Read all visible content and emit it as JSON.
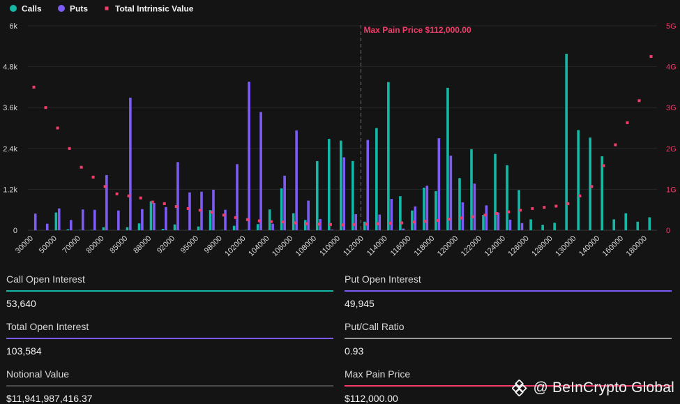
{
  "chart_data": {
    "type": "bar",
    "legend": {
      "placement": "top-left",
      "items": [
        {
          "label": "Calls",
          "color": "#14b8a6",
          "marker": "circle"
        },
        {
          "label": "Puts",
          "color": "#7c5cf5",
          "marker": "circle"
        },
        {
          "label": "Total Intrinsic Value",
          "color": "#f23c6a",
          "marker": "square"
        }
      ]
    },
    "y_left": {
      "ticks": [
        "0",
        "1.2k",
        "2.4k",
        "3.6k",
        "4.8k",
        "6k"
      ],
      "range": [
        0,
        6000
      ]
    },
    "y_right": {
      "ticks": [
        "0",
        "1G",
        "2G",
        "3G",
        "4G",
        "5G"
      ],
      "range": [
        0,
        5000000000
      ]
    },
    "x_tick_labels": [
      "30000",
      "50000",
      "70000",
      "80000",
      "85000",
      "88000",
      "92000",
      "95000",
      "98000",
      "102000",
      "104000",
      "106000",
      "108000",
      "110000",
      "112000",
      "114000",
      "116000",
      "118000",
      "120000",
      "122000",
      "124000",
      "126000",
      "128000",
      "130000",
      "140000",
      "160000",
      "180000"
    ],
    "grid": true,
    "annotation": {
      "label": "Max Pain Price $112,000.00",
      "at_index": 28
    },
    "series": [
      {
        "name": "Calls",
        "color": "#14b8a6",
        "values": [
          0,
          0,
          520,
          30,
          10,
          10,
          90,
          0,
          90,
          200,
          850,
          40,
          170,
          0,
          110,
          590,
          10,
          130,
          10,
          180,
          610,
          1230,
          500,
          300,
          2030,
          2680,
          2630,
          2030,
          250,
          3000,
          4350,
          1000,
          580,
          1250,
          1150,
          4180,
          1530,
          2380,
          450,
          2240,
          1910,
          1180,
          320,
          160,
          220,
          5180,
          2940,
          2720,
          2170,
          320,
          500,
          250,
          380
        ]
      },
      {
        "name": "Puts",
        "color": "#7c5cf5",
        "values": [
          490,
          190,
          640,
          300,
          610,
          600,
          1620,
          580,
          3890,
          620,
          800,
          680,
          2000,
          1110,
          1130,
          1190,
          600,
          1940,
          4360,
          3470,
          190,
          1600,
          2930,
          870,
          330,
          20,
          2140,
          470,
          2650,
          460,
          920,
          50,
          700,
          1310,
          2700,
          2190,
          820,
          1370,
          730,
          520,
          310,
          210,
          0,
          0,
          0,
          0,
          0,
          0,
          0,
          0,
          0,
          0,
          0
        ]
      },
      {
        "name": "Total Intrinsic Value",
        "color": "#f23c6a",
        "values": [
          3500000000,
          3000000000,
          2500000000,
          2000000000,
          1540000000,
          1300000000,
          1070000000,
          890000000,
          840000000,
          790000000,
          690000000,
          650000000,
          580000000,
          530000000,
          490000000,
          440000000,
          370000000,
          310000000,
          260000000,
          230000000,
          210000000,
          200000000,
          180000000,
          160000000,
          150000000,
          140000000,
          130000000,
          140000000,
          150000000,
          160000000,
          170000000,
          180000000,
          200000000,
          220000000,
          240000000,
          270000000,
          300000000,
          330000000,
          370000000,
          410000000,
          450000000,
          490000000,
          530000000,
          560000000,
          590000000,
          650000000,
          840000000,
          1070000000,
          1580000000,
          2090000000,
          2630000000,
          3170000000,
          4250000000
        ]
      }
    ]
  },
  "stats": {
    "call_oi": {
      "label": "Call Open Interest",
      "value": "53,640",
      "color": "#14b8a6"
    },
    "put_oi": {
      "label": "Put Open Interest",
      "value": "49,945",
      "color": "#7c5cf5"
    },
    "total_oi": {
      "label": "Total Open Interest",
      "value": "103,584",
      "color": "#7c5cf5"
    },
    "put_call_ratio": {
      "label": "Put/Call Ratio",
      "value": "0.93",
      "color": "#9a9a9a"
    },
    "notional": {
      "label": "Notional Value",
      "value": "$11,941,987,416.37",
      "color": "#4a4a4a"
    },
    "max_pain": {
      "label": "Max Pain Price",
      "value": "$112,000.00",
      "color": "#f23c6a"
    }
  },
  "watermark": {
    "text": "@ BeInCrypto Global",
    "icon": "beincrypto-logo-icon"
  }
}
